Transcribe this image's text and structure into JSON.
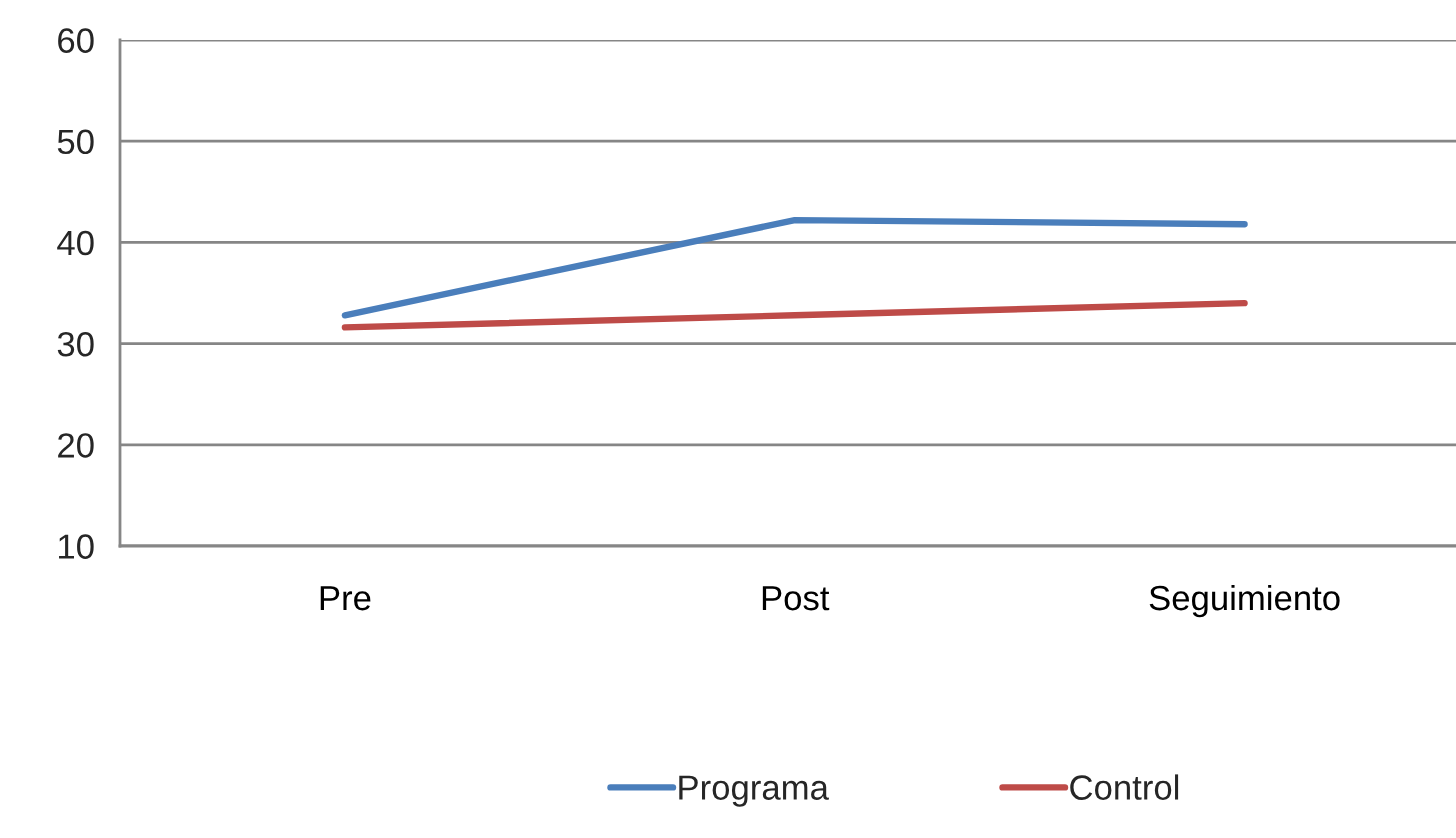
{
  "chart_data": {
    "type": "line",
    "categories": [
      "Pre",
      "Post",
      "Seguimiento"
    ],
    "series": [
      {
        "name": "Programa",
        "color": "#4a7ebb",
        "values": [
          32.8,
          42.2,
          41.8
        ]
      },
      {
        "name": "Control",
        "color": "#be4b48",
        "values": [
          31.6,
          32.8,
          34.0
        ]
      }
    ],
    "ylim": [
      10,
      60
    ],
    "yticks": [
      10,
      20,
      30,
      40,
      50,
      60
    ],
    "grid": "y",
    "legend": "bottom",
    "marker": "none",
    "line_style": "solid"
  }
}
